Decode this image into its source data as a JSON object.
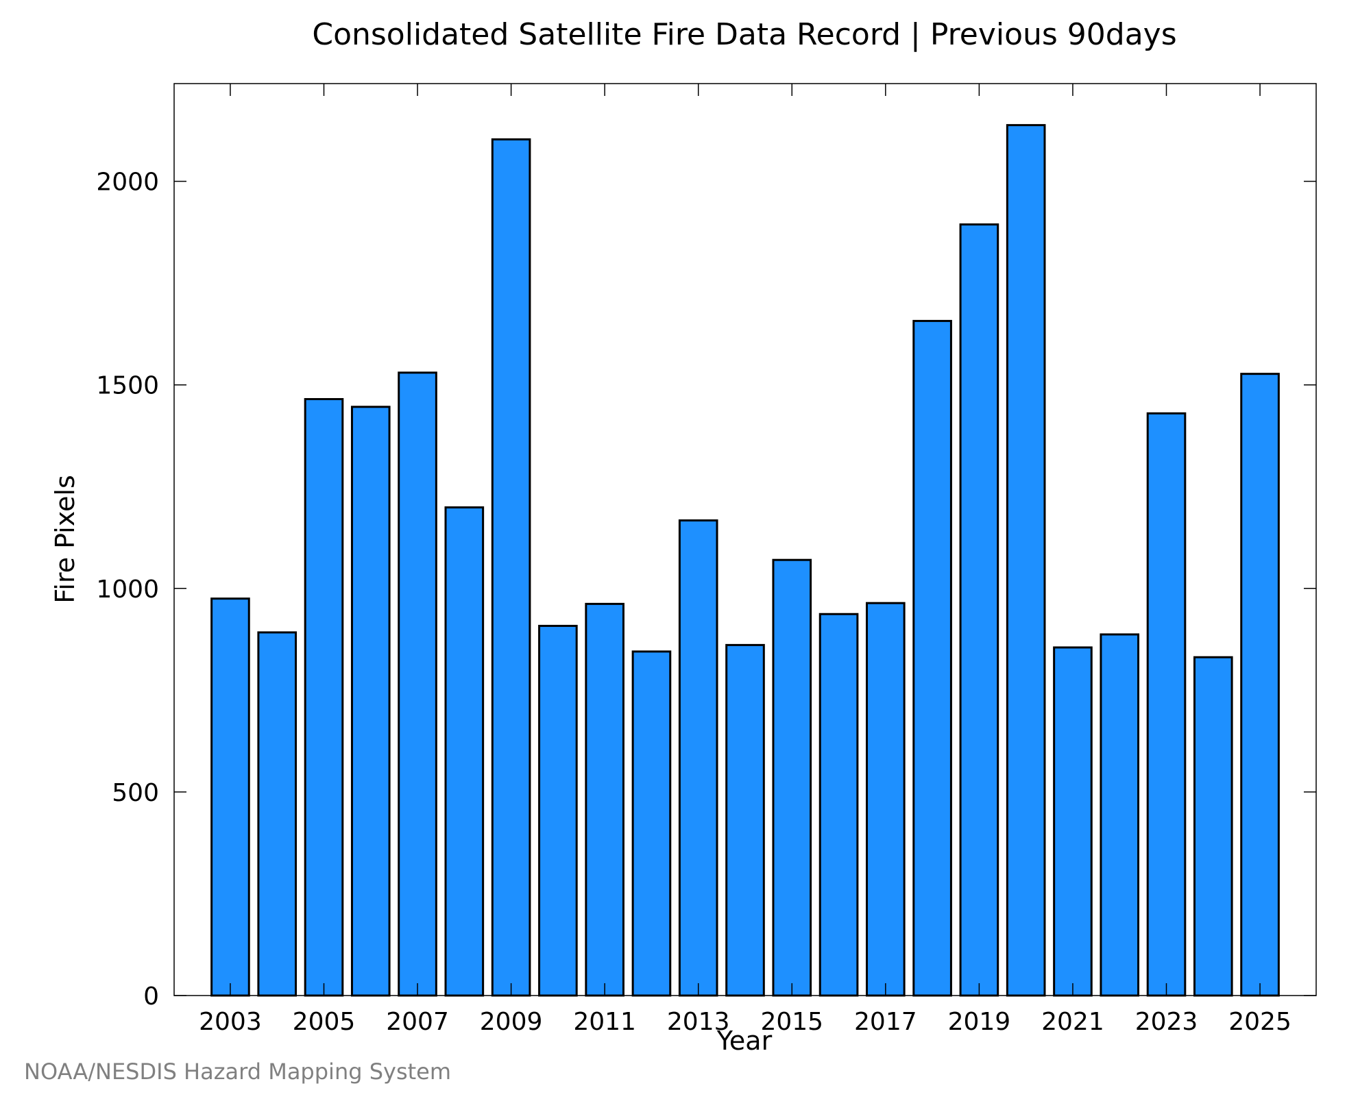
{
  "chart_data": {
    "type": "bar",
    "title": "Consolidated Satellite Fire Data Record | Previous 90days",
    "xlabel": "Year",
    "ylabel": "Fire Pixels",
    "ylim": [
      0,
      2240
    ],
    "yticks": [
      0,
      500,
      1000,
      1500,
      2000
    ],
    "xticks": [
      "2003",
      "2005",
      "2007",
      "2009",
      "2011",
      "2013",
      "2015",
      "2017",
      "2019",
      "2021",
      "2023",
      "2025"
    ],
    "categories": [
      "2003",
      "2004",
      "2005",
      "2006",
      "2007",
      "2008",
      "2009",
      "2010",
      "2011",
      "2012",
      "2013",
      "2014",
      "2015",
      "2016",
      "2017",
      "2018",
      "2019",
      "2020",
      "2021",
      "2022",
      "2023",
      "2024",
      "2025"
    ],
    "values": [
      975,
      892,
      1465,
      1446,
      1530,
      1199,
      2103,
      908,
      962,
      845,
      1167,
      861,
      1070,
      937,
      964,
      1657,
      1894,
      2138,
      855,
      887,
      1430,
      831,
      1527
    ],
    "bar_color": "#1e90ff",
    "grid": false,
    "legend": "none"
  },
  "footer": {
    "credit": "NOAA/NESDIS Hazard Mapping System"
  }
}
